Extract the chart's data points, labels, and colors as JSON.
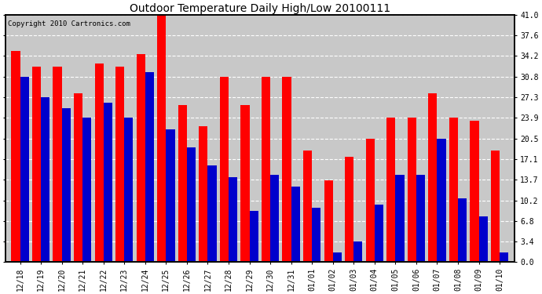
{
  "title": "Outdoor Temperature Daily High/Low 20100111",
  "copyright": "Copyright 2010 Cartronics.com",
  "dates": [
    "12/18",
    "12/19",
    "12/20",
    "12/21",
    "12/22",
    "12/23",
    "12/24",
    "12/25",
    "12/26",
    "12/27",
    "12/28",
    "12/29",
    "12/30",
    "12/31",
    "01/01",
    "01/02",
    "01/03",
    "01/04",
    "01/05",
    "01/06",
    "01/07",
    "01/08",
    "01/09",
    "01/10"
  ],
  "highs": [
    35.0,
    32.5,
    32.5,
    28.0,
    33.0,
    32.5,
    34.5,
    41.0,
    26.0,
    22.5,
    30.8,
    26.0,
    30.8,
    30.8,
    18.5,
    13.5,
    17.5,
    20.5,
    23.9,
    23.9,
    28.0,
    23.9,
    23.5,
    18.5
  ],
  "lows": [
    30.8,
    27.3,
    25.5,
    24.0,
    26.5,
    24.0,
    31.5,
    22.0,
    19.0,
    16.0,
    14.0,
    8.5,
    14.5,
    12.5,
    9.0,
    1.5,
    3.4,
    9.5,
    14.5,
    14.5,
    20.5,
    10.5,
    7.5,
    1.5
  ],
  "high_color": "#ff0000",
  "low_color": "#0000cc",
  "bg_color": "#ffffff",
  "plot_bg_color": "#ffffff",
  "grid_color": "#ffffff",
  "grid_linestyle": "--",
  "inner_bg_color": "#c8c8c8",
  "yticks": [
    0.0,
    3.4,
    6.8,
    10.2,
    13.7,
    17.1,
    20.5,
    23.9,
    27.3,
    30.8,
    34.2,
    37.6,
    41.0
  ],
  "ymax": 41.0,
  "ymin": 0.0,
  "title_fontsize": 10,
  "tick_fontsize": 7,
  "copyright_fontsize": 6.5
}
